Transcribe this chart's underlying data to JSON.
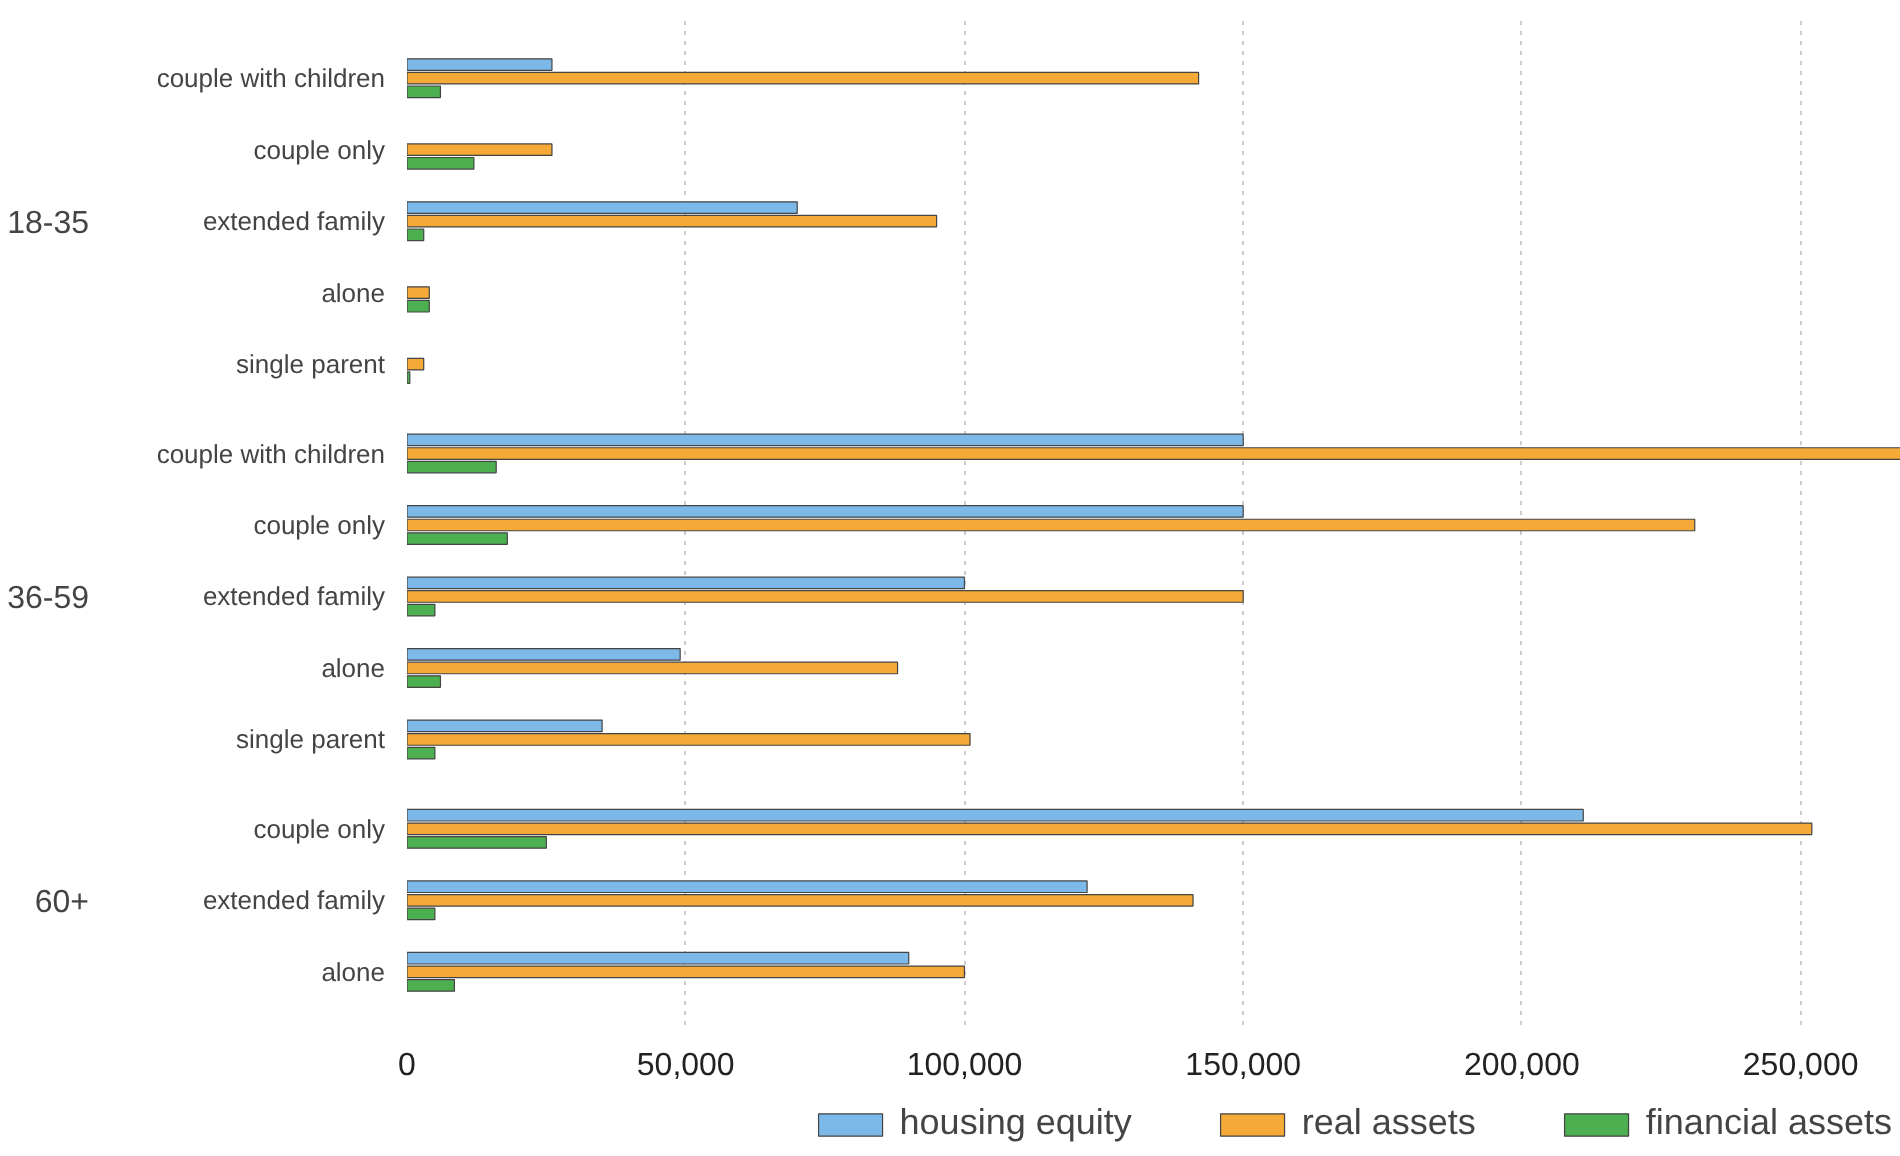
{
  "chart_data": {
    "type": "bar",
    "orientation": "horizontal",
    "categories": [
      "couple with children",
      "couple only",
      "extended family",
      "alone",
      "single parent",
      "couple with children",
      "couple only",
      "extended family",
      "alone",
      "single parent",
      "couple only",
      "extended family",
      "alone"
    ],
    "annotations": [
      "18-35",
      "36-59",
      "60+"
    ],
    "series": [
      {
        "name": "housing equity",
        "color": "#7db9e8",
        "values": [
          26000,
          null,
          70000,
          null,
          null,
          150000,
          150000,
          100000,
          49000,
          35000,
          211000,
          122000,
          90000
        ]
      },
      {
        "name": "real assets",
        "color": "#f5a936",
        "values": [
          142000,
          26000,
          95000,
          4000,
          3000,
          268000,
          231000,
          150000,
          88000,
          101000,
          252000,
          141000,
          100000
        ]
      },
      {
        "name": "financial assets",
        "color": "#4caf50",
        "values": [
          6000,
          12000,
          3000,
          4000,
          500,
          16000,
          18000,
          5000,
          6000,
          5000,
          25000,
          5000,
          8500
        ]
      }
    ],
    "xlim": [
      0,
      268000
    ],
    "xticks": [
      0,
      {
        "value": 50000,
        "label": "50,000"
      },
      {
        "value": 100000,
        "label": "100,000"
      },
      {
        "value": 150000,
        "label": "150,000"
      },
      {
        "value": 200000,
        "label": "200,000"
      },
      {
        "value": 250000,
        "label": "250,000"
      }
    ],
    "grid": "x",
    "legend": "bottom"
  }
}
